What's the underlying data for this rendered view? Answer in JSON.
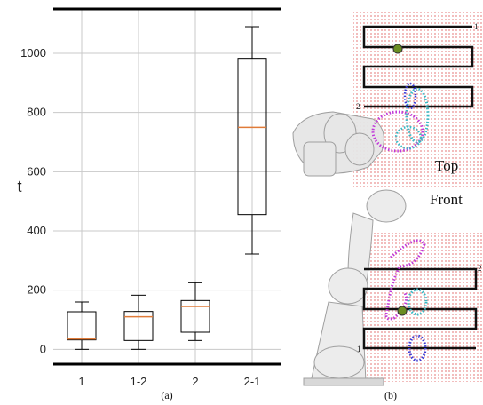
{
  "chart_data": {
    "type": "box",
    "categories": [
      "1",
      "1-2",
      "2",
      "2-1"
    ],
    "series": [
      {
        "boxes": [
          {
            "whisker_low": 0,
            "q1": 32,
            "median": 35,
            "q3": 127,
            "whisker_high": 160
          },
          {
            "whisker_low": 0,
            "q1": 30,
            "median": 110,
            "q3": 128,
            "whisker_high": 183
          },
          {
            "whisker_low": 30,
            "q1": 58,
            "median": 145,
            "q3": 165,
            "whisker_high": 225
          },
          {
            "whisker_low": 322,
            "q1": 455,
            "median": 750,
            "q3": 983,
            "whisker_high": 1090
          }
        ]
      }
    ],
    "ylabel": "t",
    "xlabel": "",
    "yticks": [
      0,
      200,
      400,
      600,
      800,
      1000
    ],
    "ylim": [
      -50,
      1150
    ],
    "grid": true,
    "box_color": "#000000",
    "median_color": "#e07b39",
    "caption": "(a)"
  },
  "panel_b": {
    "top_label": "Top",
    "front_label": "Front",
    "top_path_start": "1",
    "top_path_end": "2",
    "front_path_start": "2",
    "front_path_end": "1",
    "caption": "(b)"
  }
}
